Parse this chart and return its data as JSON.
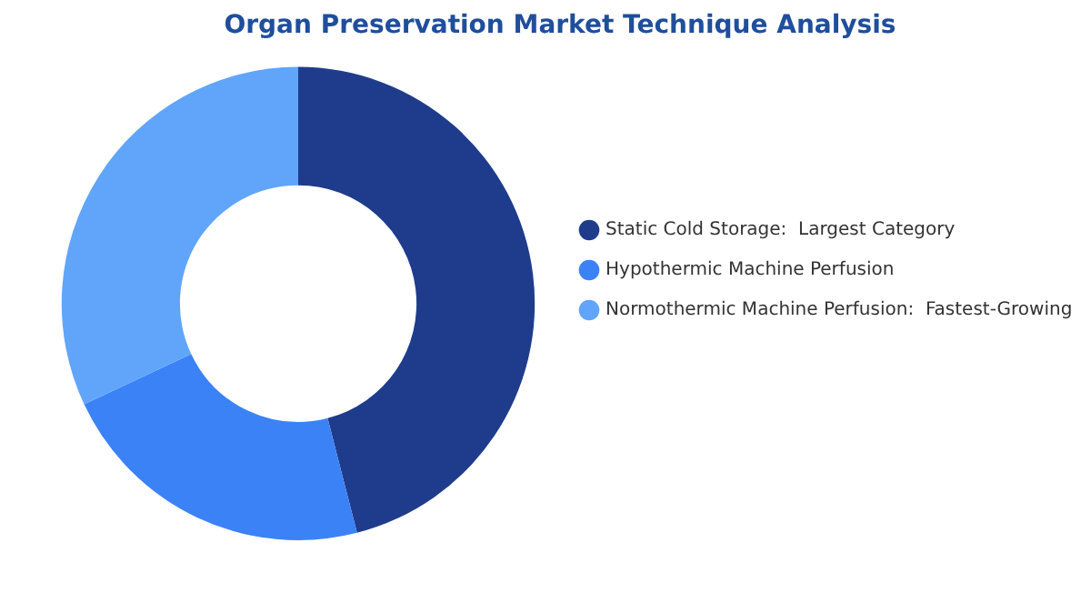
{
  "chart_data": {
    "type": "donut",
    "title": "Organ Preservation Market Technique Analysis",
    "categories": [
      "Static Cold Storage:  Largest Category",
      "Hypothermic Machine Perfusion",
      "Normothermic Machine Perfusion:  Fastest-Growing"
    ],
    "values": [
      46,
      22,
      32
    ],
    "colors": [
      "#1f3c8c",
      "#3b82f6",
      "#60a5fa"
    ],
    "legend": "right"
  }
}
